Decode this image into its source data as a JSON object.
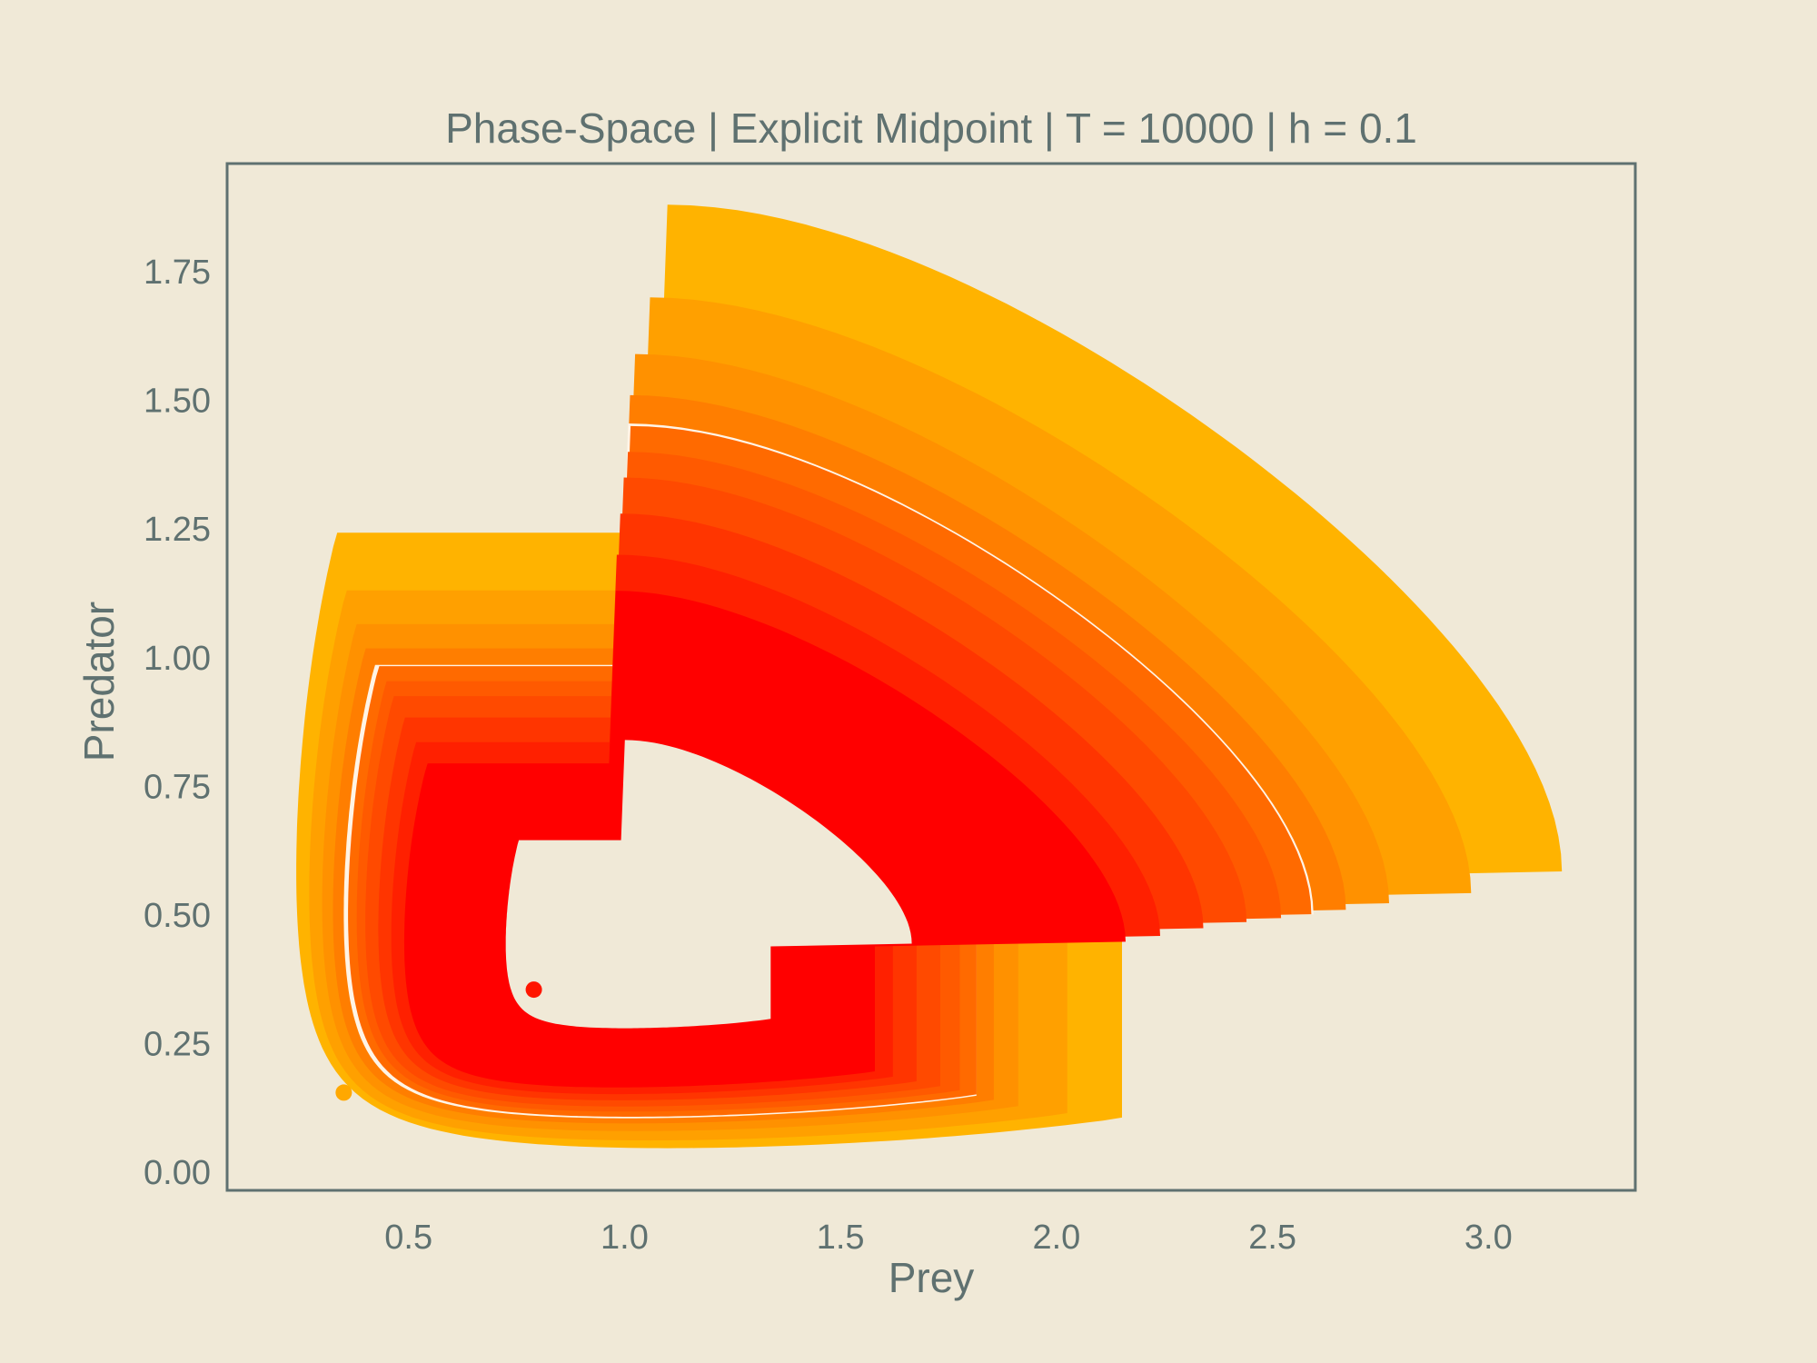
{
  "chart_data": {
    "type": "line",
    "title": "Phase-Space | Explicit Midpoint | T = 10000 | h = 0.1",
    "xlabel": "Prey",
    "ylabel": "Predator",
    "xlim": [
      0.08,
      3.34
    ],
    "ylim": [
      -0.035,
      1.96
    ],
    "xticks": [
      "0.5",
      "1.0",
      "1.5",
      "2.0",
      "2.5",
      "3.0"
    ],
    "xtick_values": [
      0.5,
      1.0,
      1.5,
      2.0,
      2.5,
      3.0
    ],
    "yticks": [
      "0.00",
      "0.25",
      "0.50",
      "0.75",
      "1.00",
      "1.25",
      "1.50",
      "1.75"
    ],
    "ytick_values": [
      0.0,
      0.25,
      0.5,
      0.75,
      1.0,
      1.25,
      1.5,
      1.75
    ],
    "grid": false,
    "background": "#f0e9d7",
    "axis_color": "#5f7170",
    "series": [
      {
        "x_min": 0.24,
        "x_max": 3.17,
        "y_min": 0.047,
        "y_max": 1.88,
        "color": "#ffb300"
      },
      {
        "x_min": 0.27,
        "x_max": 2.96,
        "y_min": 0.062,
        "y_max": 1.7,
        "color": "#ffa000"
      },
      {
        "x_min": 0.3,
        "x_max": 2.77,
        "y_min": 0.08,
        "y_max": 1.59,
        "color": "#ff9100"
      },
      {
        "x_min": 0.325,
        "x_max": 2.67,
        "y_min": 0.095,
        "y_max": 1.51,
        "color": "#ff7e00"
      },
      {
        "x_min": 0.35,
        "x_max": 2.595,
        "y_min": 0.105,
        "y_max": 1.455,
        "color": "#fff4e6"
      },
      {
        "x_min": 0.36,
        "x_max": 2.59,
        "y_min": 0.108,
        "y_max": 1.45,
        "color": "#ff6a00"
      },
      {
        "x_min": 0.38,
        "x_max": 2.52,
        "y_min": 0.118,
        "y_max": 1.4,
        "color": "#ff5a00"
      },
      {
        "x_min": 0.4,
        "x_max": 2.44,
        "y_min": 0.128,
        "y_max": 1.35,
        "color": "#ff4a00"
      },
      {
        "x_min": 0.43,
        "x_max": 2.34,
        "y_min": 0.14,
        "y_max": 1.28,
        "color": "#ff3500"
      },
      {
        "x_min": 0.46,
        "x_max": 2.24,
        "y_min": 0.152,
        "y_max": 1.2,
        "color": "#ff2000"
      },
      {
        "x_min": 0.49,
        "x_max": 2.16,
        "y_min": 0.165,
        "y_max": 1.13,
        "color": "#ff0000"
      },
      {
        "x_min": 0.725,
        "x_max": 1.665,
        "y_min": 0.28,
        "y_max": 0.84,
        "color": "#f0e9d7"
      }
    ],
    "markers": [
      {
        "x": 0.35,
        "y": 0.155,
        "color": "#ffa800"
      },
      {
        "x": 0.79,
        "y": 0.355,
        "color": "#ff1500"
      }
    ]
  }
}
